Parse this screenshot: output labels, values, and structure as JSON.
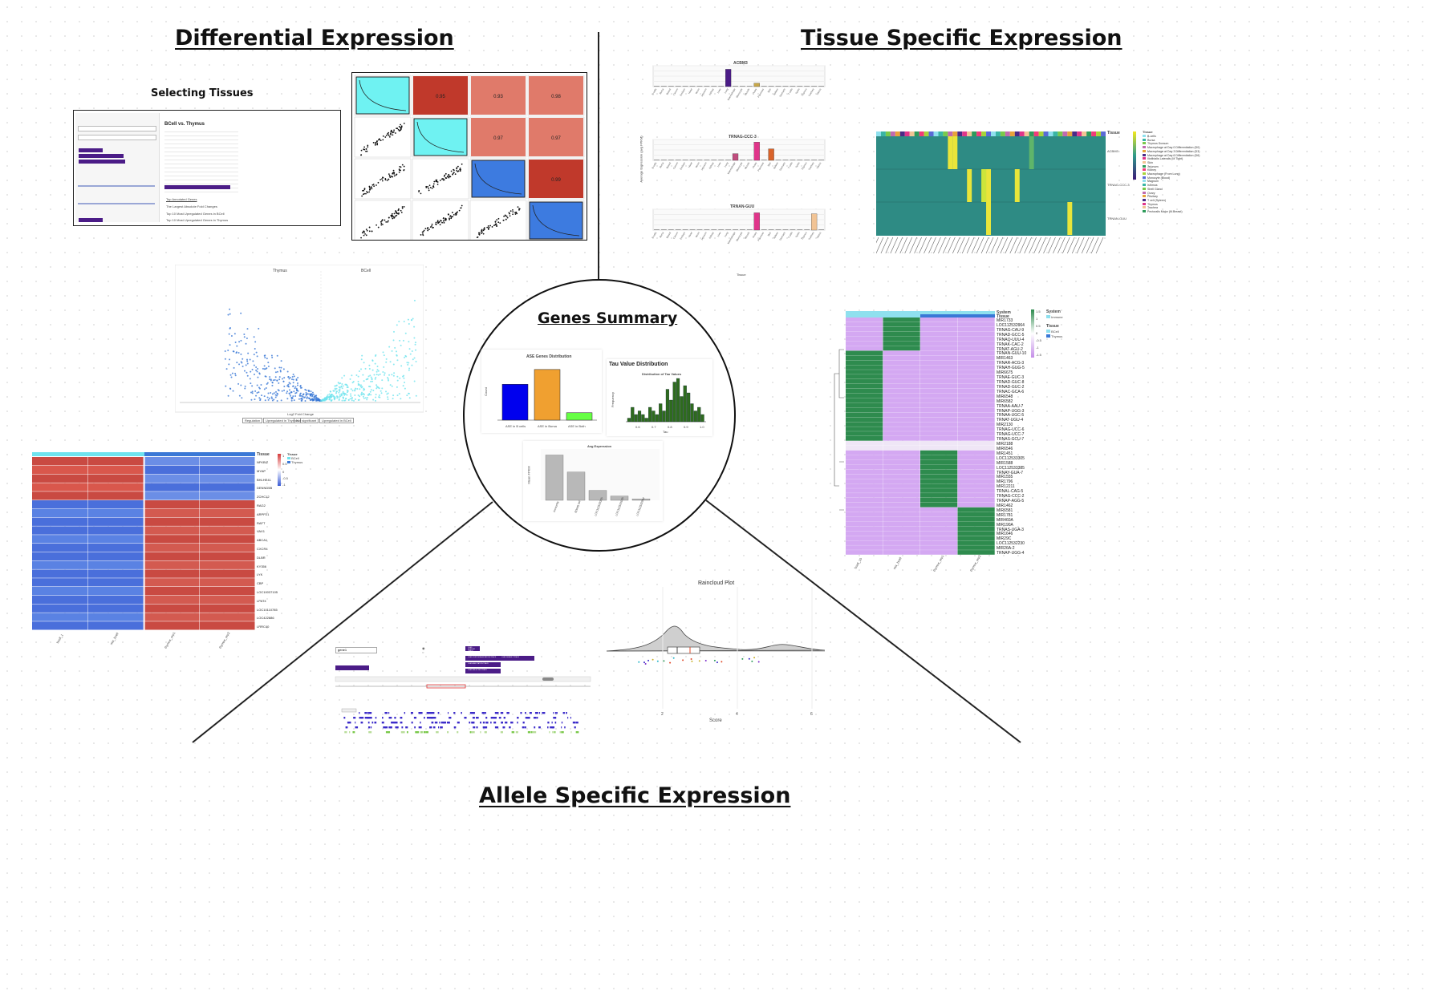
{
  "sections": {
    "differential": "Differential Expression",
    "tissue": "Tissue Specific Expression",
    "allele": "Allele Specific Expression",
    "summary": "Genes Summary"
  },
  "selecting_tissues": {
    "caption": "Selecting Tissues",
    "title": "BCell vs. Thymus",
    "links": [
      "Top Annotated Genes",
      "The Largest Absolute Fold Changes",
      "Top 10 Most Upregulated Genes in BCell",
      "Top 10 Most Upregulated Genes in Thymus"
    ]
  },
  "correlation_matrix": {
    "values": [
      "0.95",
      "0.93",
      "0.98",
      "0.97",
      "0.97",
      "0.99"
    ],
    "colors": {
      "high": "#c0392b",
      "mid": "#e07a6a",
      "diag": "#6ff2f2",
      "blue": "#3d7be0"
    }
  },
  "volcano": {
    "left_label": "Thymus",
    "right_label": "BCell",
    "xlabel": "Log2 Fold Change",
    "ylabel": "-log10 Adjusted P-value",
    "legend": [
      "Regulation",
      "Upregulated in Thymus",
      "Not significant",
      "Upregulated in BCell"
    ],
    "colors": {
      "thymus": "#3a78d6",
      "bcell": "#6fe3ee"
    }
  },
  "heatmap_de": {
    "legend_title": "Tissue",
    "legend_items": [
      "BCell",
      "Thymus"
    ],
    "scale": [
      "1",
      "0.5",
      "0",
      "-0.5",
      "-1"
    ],
    "genes": [
      "NFKBIZ",
      "MYAP",
      "BHLHE41",
      "DENND5B",
      "ZCHC12",
      "RAG2",
      "ARPP21",
      "RAFT",
      "VAX1",
      "ABCA1",
      "CXCR4",
      "DLBR",
      "KY356",
      "LYK",
      "CBP",
      "LOC10037105",
      "LPAT4",
      "LOC10110785",
      "LOC422886",
      "LRRC40"
    ],
    "samples": [
      "bcell_1",
      "mix_bcell",
      "thymus_rep1",
      "thymus_rep2"
    ]
  },
  "tissue_bars": {
    "charts": [
      {
        "title": "ACBM3",
        "bars": [
          {
            "i": 10,
            "v": 0.9,
            "c": "#4b1c87"
          },
          {
            "i": 14,
            "v": 0.18,
            "c": "#c8a84a"
          }
        ]
      },
      {
        "title": "TRNAG-CCC-3",
        "bars": [
          {
            "i": 11,
            "v": 0.35,
            "c": "#c04d7e"
          },
          {
            "i": 14,
            "v": 0.95,
            "c": "#e0358a"
          },
          {
            "i": 16,
            "v": 0.6,
            "c": "#d9632a"
          }
        ]
      },
      {
        "title": "TRNAN-GUU",
        "bars": [
          {
            "i": 14,
            "v": 0.9,
            "c": "#e0358a"
          },
          {
            "i": 22,
            "v": 0.85,
            "c": "#f2c495"
          }
        ]
      }
    ],
    "ylabel": "Average Expression (avg FPKM)",
    "xlabel": "Tissue",
    "categories": [
      "B-cells",
      "Bursa",
      "Breast",
      "Cecum",
      "Embryo",
      "Heart",
      "Ileum",
      "Jejunum",
      "Kidney",
      "Liver",
      "Lung",
      "Macrophage",
      "Monocyte",
      "Muscle",
      "Ovary",
      "Pancreas",
      "Skin",
      "Spleen",
      "Stomach",
      "T-cells",
      "Testis",
      "Thymus",
      "Trachea",
      "Uterus"
    ]
  },
  "tissue_heatmap": {
    "legend_title": "Tissue",
    "rows": [
      "ACBM3",
      "TRNAG-CCC-3",
      "TRNAN-GUU"
    ],
    "legend_items": [
      "B-cells",
      "Bursa",
      "Thymus Dorsum",
      "Macrophage at Day 0 Differentiation (D0)",
      "Macrophage at Day 3 Differentiation (D3)",
      "Macrophage at Day 6 Differentiation (D6)",
      "Iliotibialis Lateralis (M Tight)",
      "Skin",
      "Jejunum",
      "Kidney",
      "Macrophage (From Lung)",
      "Monocyte (Blood)",
      "Magnum",
      "Isthmus",
      "Shell Gland",
      "Ovary",
      "Pituitary",
      "T cell (Spleen)",
      "Thymus",
      "Trachea",
      "Pectoralis Major (M.Breast)"
    ]
  },
  "immune_heatmap": {
    "annot": [
      "System",
      "Tissue"
    ],
    "system_legend_title": "System",
    "system_items": [
      "Immune"
    ],
    "tissue_legend_title": "Tissue",
    "tissue_items": [
      "BCell",
      "Thymus"
    ],
    "scale": [
      "1.5",
      "1",
      "0.5",
      "0",
      "-0.5",
      "-1",
      "-1.5"
    ],
    "genes": [
      "MIR1733",
      "LOC112532964",
      "TRNAG-CAU-9",
      "TRNAD-GCC-5",
      "TRNAQ-UUU-4",
      "TRNAK-CAC-2",
      "TRNAT-AGU-2",
      "TRNAN-GUU-10",
      "MIR1463",
      "TRNAR-ACG-3",
      "TRNAH-GUG-5",
      "MIR6675",
      "TRNAE-GUC-3",
      "TRNAD-GUC-8",
      "TRNAD-GUC-2",
      "TRNAC-GCA-6",
      "MIR6548",
      "MIR6582",
      "TRNAA-AAU-7",
      "TRNAP-UGG-3",
      "TRNAA-UGC-5",
      "TRNAT-UGU-4",
      "MIR2130",
      "TRNAG-UCC-6",
      "TRNAG-UCC-7",
      "TRNAS-GCU-7",
      "MIR2188",
      "MIR6546",
      "MIR1451",
      "LOC112533305",
      "MIR1588",
      "LOC112533385",
      "TRNAY-GUA-7",
      "MIR1555",
      "MIR1796",
      "MIR12211",
      "TRNAL-CAG-5",
      "TRNAG-CCC-2",
      "TRNAP-AGG-5",
      "MIR1462",
      "MIR6581",
      "MIR1781",
      "MIR460A",
      "MIR190A",
      "TRNAS-UGA-3",
      "MIR1646",
      "MIR29C",
      "LOC112532230",
      "MIR26A-2",
      "TRNAP-UGG-4"
    ],
    "samples": [
      "bcell_19",
      "mix_bcell",
      "thymus_rep1",
      "thymus_rep2"
    ]
  },
  "ase_chart": {
    "title": "ASE Genes Distribution",
    "ylabel": "Count",
    "categories": [
      "ASE in B cells",
      "ASE in Bursa",
      "ASE in Both"
    ],
    "values": [
      460,
      650,
      95
    ],
    "colors": [
      "#0000ee",
      "#f0a030",
      "#66ff44"
    ]
  },
  "tau_chart": {
    "heading": "Tau Value Distribution",
    "title": "Distribution of Tau Values",
    "xlabel": "Tau",
    "ylabel": "Frequency",
    "xticks": [
      "0.6",
      "0.7",
      "0.8",
      "0.9",
      "1.0"
    ],
    "values": [
      1,
      4,
      2,
      3,
      2,
      1,
      4,
      3,
      2,
      5,
      3,
      9,
      6,
      11,
      12,
      7,
      10,
      8,
      5,
      3,
      4,
      2
    ],
    "color": "#2e6b1e"
  },
  "avg_chart": {
    "title": "Avg Expression",
    "ylabel": "Mean FPKM",
    "categories": [
      "Immunity",
      "B(test) set",
      "LOC112533305",
      "LOC112531035",
      "LOC112532964"
    ],
    "values": [
      1.6,
      1.0,
      0.35,
      0.15,
      0.05
    ],
    "color": "#b8b8b8"
  },
  "raincloud": {
    "title": "Raincloud Plot",
    "xlabel": "Score",
    "xticks": [
      "2",
      "4",
      "6"
    ]
  },
  "genome_browser": {
    "select_value": "gene1",
    "buttons": [
      "LOAD CUSTOM TRACK",
      "LOAD CUSTOM ANNOTATION TRACK",
      "LOAD DEFAULT TRACK",
      "LOAD ANNOTATION TRACK",
      "LOAD SELECTED TRACK"
    ]
  }
}
